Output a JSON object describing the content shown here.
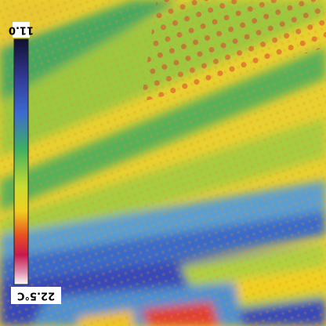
{
  "scale": {
    "top_label": "11.0",
    "bottom_label": "22.5°C"
  }
}
